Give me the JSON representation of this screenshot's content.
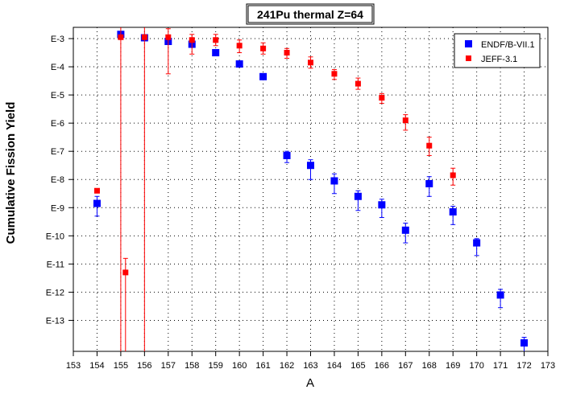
{
  "chart_data": {
    "type": "scatter",
    "title": "241Pu thermal Z=64",
    "xlabel": "A",
    "ylabel": "Cumulative Fission Yield",
    "xlim": [
      153,
      173
    ],
    "x_ticks": [
      153,
      154,
      155,
      156,
      157,
      158,
      159,
      160,
      161,
      162,
      163,
      164,
      165,
      166,
      167,
      168,
      169,
      170,
      171,
      172,
      173
    ],
    "y_scale": "log",
    "y_ticks": [
      {
        "exp": -3,
        "label": "E-3"
      },
      {
        "exp": -4,
        "label": "E-4"
      },
      {
        "exp": -5,
        "label": "E-5"
      },
      {
        "exp": -6,
        "label": "E-6"
      },
      {
        "exp": -7,
        "label": "E-7"
      },
      {
        "exp": -8,
        "label": "E-8"
      },
      {
        "exp": -9,
        "label": "E-9"
      },
      {
        "exp": -10,
        "label": "E-10"
      },
      {
        "exp": -11,
        "label": "E-11"
      },
      {
        "exp": -12,
        "label": "E-12"
      },
      {
        "exp": -13,
        "label": "E-13"
      }
    ],
    "grid": true,
    "legend_position": "top-right",
    "series": [
      {
        "name": "ENDF/B-VII.1",
        "color": "#0000ff",
        "marker": "square",
        "points": [
          {
            "x": 154,
            "logy": -8.85,
            "err_lo": 0.45,
            "err_hi": 0.25
          },
          {
            "x": 155,
            "logy": -2.85,
            "err_lo": 0.05,
            "err_hi": 0.05
          },
          {
            "x": 156,
            "logy": -2.97,
            "err_lo": 0.05,
            "err_hi": 0.05
          },
          {
            "x": 157,
            "logy": -3.1,
            "err_lo": 0.05,
            "err_hi": 0.05
          },
          {
            "x": 158,
            "logy": -3.2,
            "err_lo": 0.05,
            "err_hi": 0.05
          },
          {
            "x": 159,
            "logy": -3.5,
            "err_lo": 0.05,
            "err_hi": 0.05
          },
          {
            "x": 160,
            "logy": -3.9,
            "err_lo": 0.05,
            "err_hi": 0.05
          },
          {
            "x": 161,
            "logy": -4.35,
            "err_lo": 0.05,
            "err_hi": 0.05
          },
          {
            "x": 162,
            "logy": -7.15,
            "err_lo": 0.25,
            "err_hi": 0.15
          },
          {
            "x": 163,
            "logy": -7.5,
            "err_lo": 0.5,
            "err_hi": 0.2
          },
          {
            "x": 164,
            "logy": -8.05,
            "err_lo": 0.45,
            "err_hi": 0.25
          },
          {
            "x": 165,
            "logy": -8.6,
            "err_lo": 0.5,
            "err_hi": 0.2
          },
          {
            "x": 166,
            "logy": -8.9,
            "err_lo": 0.45,
            "err_hi": 0.2
          },
          {
            "x": 167,
            "logy": -9.8,
            "err_lo": 0.45,
            "err_hi": 0.25
          },
          {
            "x": 168,
            "logy": -8.15,
            "err_lo": 0.45,
            "err_hi": 0.25
          },
          {
            "x": 169,
            "logy": -9.15,
            "err_lo": 0.45,
            "err_hi": 0.2
          },
          {
            "x": 170,
            "logy": -10.25,
            "err_lo": 0.45,
            "err_hi": 0.15
          },
          {
            "x": 171,
            "logy": -12.1,
            "err_lo": 0.45,
            "err_hi": 0.2
          },
          {
            "x": 172,
            "logy": -13.8,
            "err_lo": 0.5,
            "err_hi": 0.2
          }
        ]
      },
      {
        "name": "JEFF-3.1",
        "color": "#ff0000",
        "marker": "square",
        "points": [
          {
            "x": 154,
            "logy": -8.4,
            "err_lo": 0.05,
            "err_hi": 0.05
          },
          {
            "x": 155,
            "logy": -2.95,
            "err_lo": 11.6,
            "err_hi": 0.4
          },
          {
            "x": 155.2,
            "logy": -11.3,
            "err_lo": 3.3,
            "err_hi": 0.5
          },
          {
            "x": 156,
            "logy": -2.95,
            "err_lo": 11.6,
            "err_hi": 0.4
          },
          {
            "x": 157,
            "logy": -2.95,
            "err_lo": 1.3,
            "err_hi": 0.3
          },
          {
            "x": 158,
            "logy": -3.05,
            "err_lo": 0.5,
            "err_hi": 0.2
          },
          {
            "x": 159,
            "logy": -3.05,
            "err_lo": 0.2,
            "err_hi": 0.2
          },
          {
            "x": 160,
            "logy": -3.25,
            "err_lo": 0.25,
            "err_hi": 0.2
          },
          {
            "x": 161,
            "logy": -3.35,
            "err_lo": 0.2,
            "err_hi": 0.2
          },
          {
            "x": 162,
            "logy": -3.5,
            "err_lo": 0.2,
            "err_hi": 0.15
          },
          {
            "x": 163,
            "logy": -3.85,
            "err_lo": 0.2,
            "err_hi": 0.2
          },
          {
            "x": 164,
            "logy": -4.25,
            "err_lo": 0.2,
            "err_hi": 0.15
          },
          {
            "x": 165,
            "logy": -4.6,
            "err_lo": 0.2,
            "err_hi": 0.2
          },
          {
            "x": 166,
            "logy": -5.1,
            "err_lo": 0.2,
            "err_hi": 0.15
          },
          {
            "x": 167,
            "logy": -5.9,
            "err_lo": 0.35,
            "err_hi": 0.2
          },
          {
            "x": 168,
            "logy": -6.8,
            "err_lo": 0.35,
            "err_hi": 0.3
          },
          {
            "x": 169,
            "logy": -7.85,
            "err_lo": 0.35,
            "err_hi": 0.25
          }
        ]
      }
    ]
  }
}
